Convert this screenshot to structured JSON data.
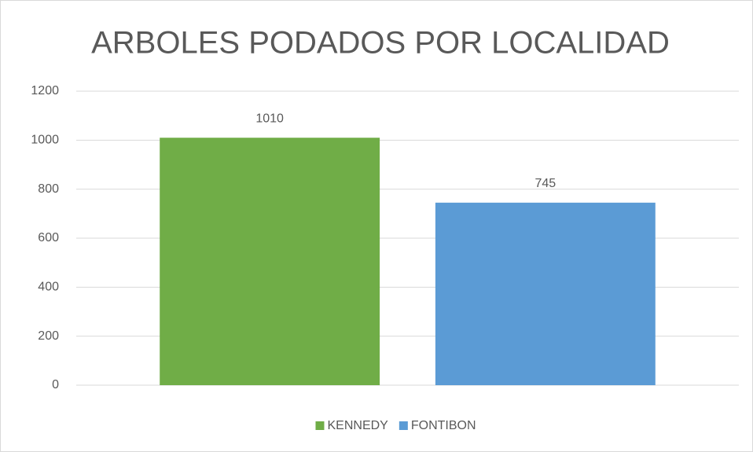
{
  "chart_data": {
    "type": "bar",
    "title": "ARBOLES PODADOS POR LOCALIDAD",
    "categories": [
      null
    ],
    "series": [
      {
        "name": "KENNEDY",
        "color": "#70ad47",
        "values": [
          1010
        ]
      },
      {
        "name": "FONTIBON",
        "color": "#5b9bd5",
        "values": [
          745
        ]
      }
    ],
    "ylim": [
      0,
      1200
    ],
    "yticks": [
      0,
      200,
      400,
      600,
      800,
      1000,
      1200
    ],
    "grid": true,
    "legend": "bottom"
  }
}
